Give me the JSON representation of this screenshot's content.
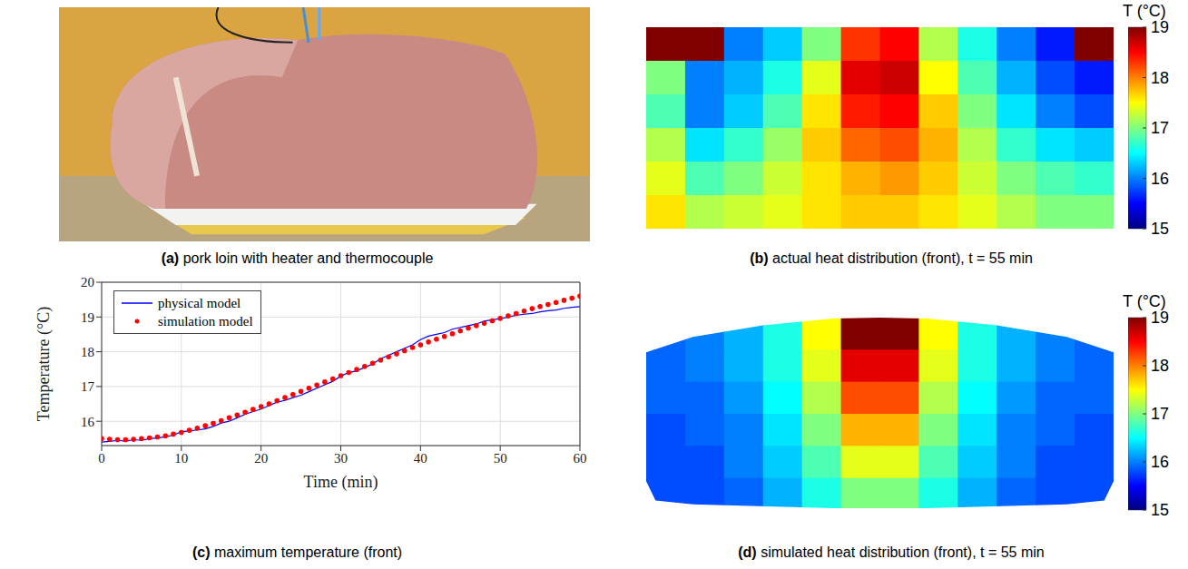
{
  "chart_data": [
    {
      "type": "image",
      "letter": "(a)",
      "caption": "pork loin with heater and thermocouple"
    },
    {
      "type": "heatmap",
      "letter": "(b)",
      "caption": "actual heat distribution (front), t = 55 min",
      "cells": [
        [
          19,
          19,
          16.0,
          16.3,
          17.0,
          18.3,
          18.5,
          17.2,
          16.6,
          16.0,
          15.6,
          19
        ],
        [
          17.0,
          16.0,
          16.2,
          16.6,
          17.4,
          18.6,
          18.7,
          17.5,
          16.8,
          16.2,
          15.8,
          15.6
        ],
        [
          16.8,
          16.0,
          16.3,
          16.8,
          17.6,
          18.4,
          18.5,
          17.7,
          17.0,
          16.4,
          16.0,
          15.8
        ],
        [
          17.2,
          16.4,
          16.7,
          17.1,
          17.7,
          18.1,
          18.2,
          17.8,
          17.2,
          16.7,
          16.4,
          16.3
        ],
        [
          17.4,
          16.8,
          17.0,
          17.3,
          17.6,
          17.8,
          17.9,
          17.7,
          17.3,
          17.0,
          16.8,
          16.7
        ],
        [
          17.6,
          17.2,
          17.3,
          17.4,
          17.6,
          17.7,
          17.7,
          17.6,
          17.4,
          17.2,
          17.0,
          17.0
        ]
      ],
      "colorbar": {
        "title": "T (°C)",
        "range": [
          15,
          19
        ],
        "ticks": [
          15,
          16,
          17,
          18,
          19
        ]
      }
    },
    {
      "type": "line",
      "letter": "(c)",
      "caption": "maximum temperature (front)",
      "x_label": "Time (min)",
      "y_label": "Temperature (°C)",
      "xlim": [
        0,
        60
      ],
      "xticks": [
        0,
        10,
        20,
        30,
        40,
        50,
        60
      ],
      "ylim": [
        15.3,
        20
      ],
      "yticks": [
        16,
        17,
        18,
        19,
        20
      ],
      "grid": true,
      "legend": "top-left",
      "x": [
        0,
        1,
        2,
        3,
        4,
        5,
        6,
        7,
        8,
        9,
        10,
        11,
        12,
        13,
        14,
        15,
        16,
        17,
        18,
        19,
        20,
        21,
        22,
        23,
        24,
        25,
        26,
        27,
        28,
        29,
        30,
        31,
        32,
        33,
        34,
        35,
        36,
        37,
        38,
        39,
        40,
        41,
        42,
        43,
        44,
        45,
        46,
        47,
        48,
        49,
        50,
        51,
        52,
        53,
        54,
        55,
        56,
        57,
        58,
        59,
        60
      ],
      "series": [
        {
          "name": "physical model",
          "color": "#0000ff",
          "line_style": "solid",
          "marker": "none",
          "values": [
            15.4,
            15.42,
            15.45,
            15.43,
            15.47,
            15.45,
            15.5,
            15.52,
            15.55,
            15.6,
            15.7,
            15.72,
            15.75,
            15.78,
            15.85,
            15.95,
            16.0,
            16.1,
            16.2,
            16.28,
            16.35,
            16.45,
            16.55,
            16.6,
            16.68,
            16.75,
            16.85,
            16.95,
            17.05,
            17.15,
            17.3,
            17.4,
            17.45,
            17.55,
            17.65,
            17.8,
            17.9,
            18.0,
            18.1,
            18.2,
            18.35,
            18.45,
            18.5,
            18.55,
            18.65,
            18.7,
            18.75,
            18.8,
            18.88,
            18.92,
            18.95,
            19.0,
            19.05,
            19.08,
            19.1,
            19.15,
            19.18,
            19.2,
            19.25,
            19.28,
            19.3
          ]
        },
        {
          "name": "simulation model",
          "color": "#ff0000",
          "line_style": "none",
          "marker": "dot",
          "values": [
            15.5,
            15.48,
            15.47,
            15.47,
            15.48,
            15.5,
            15.52,
            15.55,
            15.58,
            15.63,
            15.68,
            15.74,
            15.8,
            15.87,
            15.94,
            16.02,
            16.1,
            16.18,
            16.26,
            16.34,
            16.42,
            16.5,
            16.59,
            16.68,
            16.77,
            16.86,
            16.95,
            17.04,
            17.13,
            17.22,
            17.31,
            17.4,
            17.49,
            17.58,
            17.67,
            17.76,
            17.85,
            17.94,
            18.03,
            18.12,
            18.2,
            18.28,
            18.36,
            18.44,
            18.52,
            18.6,
            18.68,
            18.75,
            18.82,
            18.89,
            18.96,
            19.03,
            19.1,
            19.17,
            19.24,
            19.3,
            19.36,
            19.42,
            19.48,
            19.54,
            19.6
          ]
        }
      ]
    },
    {
      "type": "heatmap",
      "letter": "(d)",
      "caption": "simulated heat distribution (front), t = 55 min",
      "cells": [
        [
          15.9,
          16.0,
          16.2,
          16.6,
          17.5,
          19,
          19,
          17.5,
          16.6,
          16.2,
          16.0,
          15.9
        ],
        [
          15.9,
          16.0,
          16.2,
          16.6,
          17.4,
          18.6,
          18.6,
          17.4,
          16.6,
          16.2,
          16.0,
          15.9
        ],
        [
          15.9,
          15.9,
          16.1,
          16.5,
          17.2,
          18.2,
          18.2,
          17.2,
          16.5,
          16.1,
          15.9,
          15.9
        ],
        [
          15.8,
          15.9,
          16.0,
          16.4,
          17.0,
          17.8,
          17.8,
          17.0,
          16.4,
          16.0,
          15.9,
          15.8
        ],
        [
          15.8,
          15.8,
          16.0,
          16.3,
          16.8,
          17.4,
          17.4,
          16.8,
          16.3,
          16.0,
          15.8,
          15.8
        ],
        [
          15.8,
          15.8,
          15.9,
          16.2,
          16.6,
          17.0,
          17.0,
          16.6,
          16.2,
          15.9,
          15.8,
          15.8
        ]
      ],
      "colorbar": {
        "title": "T (°C)",
        "range": [
          15,
          19
        ],
        "ticks": [
          15,
          16,
          17,
          18,
          19
        ]
      }
    }
  ]
}
